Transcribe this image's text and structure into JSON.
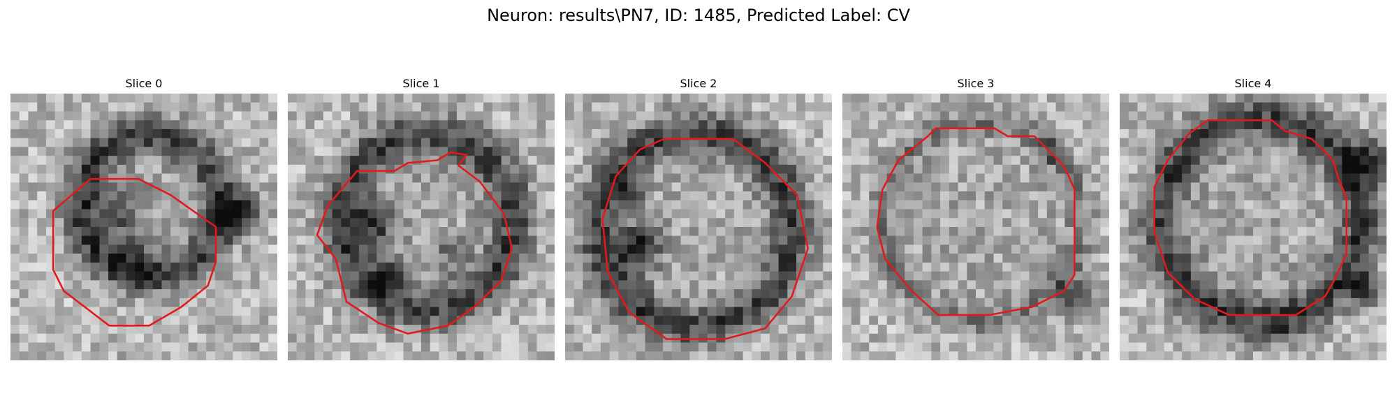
{
  "figure": {
    "title": "Neuron: results\\PN7, ID: 1485, Predicted Label: CV"
  },
  "overlay_color": "#e31a1c",
  "panels": [
    {
      "title": "Slice 0"
    },
    {
      "title": "Slice 1"
    },
    {
      "title": "Slice 2"
    },
    {
      "title": "Slice 3"
    },
    {
      "title": "Slice 4"
    }
  ]
}
